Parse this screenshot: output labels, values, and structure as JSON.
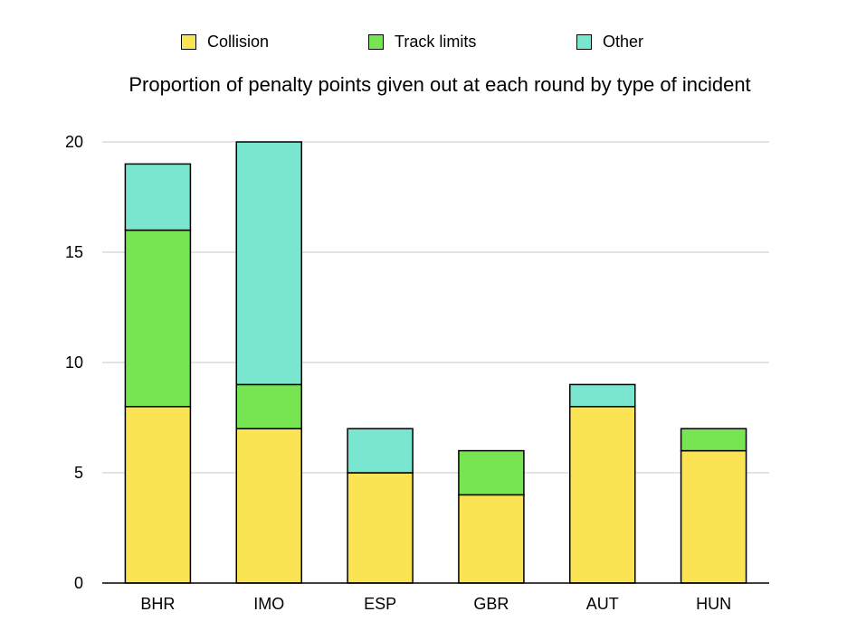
{
  "chart_data": {
    "type": "bar",
    "stacked": true,
    "title": "Proportion of penalty points given out at each round by type of incident",
    "xlabel": "",
    "ylabel": "",
    "categories": [
      "BHR",
      "IMO",
      "ESP",
      "GBR",
      "AUT",
      "HUN"
    ],
    "series": [
      {
        "name": "Collision",
        "color": "#fbe454",
        "values": [
          8,
          7,
          5,
          4,
          8,
          6
        ]
      },
      {
        "name": "Track limits",
        "color": "#77e551",
        "values": [
          8,
          2,
          0,
          2,
          0,
          1
        ]
      },
      {
        "name": "Other",
        "color": "#7ae6d0",
        "values": [
          3,
          11,
          2,
          0,
          1,
          0
        ]
      }
    ],
    "ylim": [
      0,
      20
    ],
    "yticks": [
      0,
      5,
      10,
      15,
      20
    ],
    "grid": true,
    "legend_position": "top"
  }
}
